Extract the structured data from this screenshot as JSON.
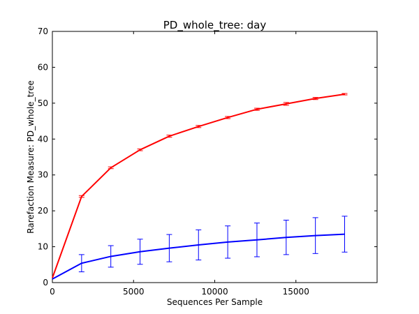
{
  "chart_data": {
    "type": "line",
    "title": "PD_whole_tree: day",
    "xlabel": "Sequences Per Sample",
    "ylabel": "Rarefaction Measure: PD_whole_tree",
    "xlim": [
      0,
      20000
    ],
    "ylim": [
      0,
      70
    ],
    "xticks": [
      0,
      5000,
      10000,
      15000
    ],
    "yticks": [
      0,
      10,
      20,
      30,
      40,
      50,
      60,
      70
    ],
    "grid": false,
    "legend": "none",
    "series": [
      {
        "color": "#ff0000",
        "x": [
          0,
          1800,
          3600,
          5400,
          7200,
          9000,
          10800,
          12600,
          14400,
          16200,
          18000
        ],
        "y": [
          1.3,
          24.0,
          32.0,
          37.0,
          40.8,
          43.5,
          46.0,
          48.3,
          49.8,
          51.3,
          52.5
        ],
        "err": [
          0.0,
          0.25,
          0.25,
          0.25,
          0.3,
          0.3,
          0.3,
          0.3,
          0.4,
          0.3,
          0.2
        ]
      },
      {
        "color": "#0000ff",
        "x": [
          0,
          1800,
          3600,
          5400,
          7200,
          9000,
          10800,
          12600,
          14400,
          16200,
          18000
        ],
        "y": [
          1.0,
          5.4,
          7.3,
          8.6,
          9.6,
          10.5,
          11.3,
          11.9,
          12.6,
          13.1,
          13.5
        ],
        "err": [
          0.0,
          2.4,
          3.0,
          3.5,
          3.8,
          4.2,
          4.5,
          4.7,
          4.8,
          5.0,
          5.0
        ]
      }
    ]
  }
}
